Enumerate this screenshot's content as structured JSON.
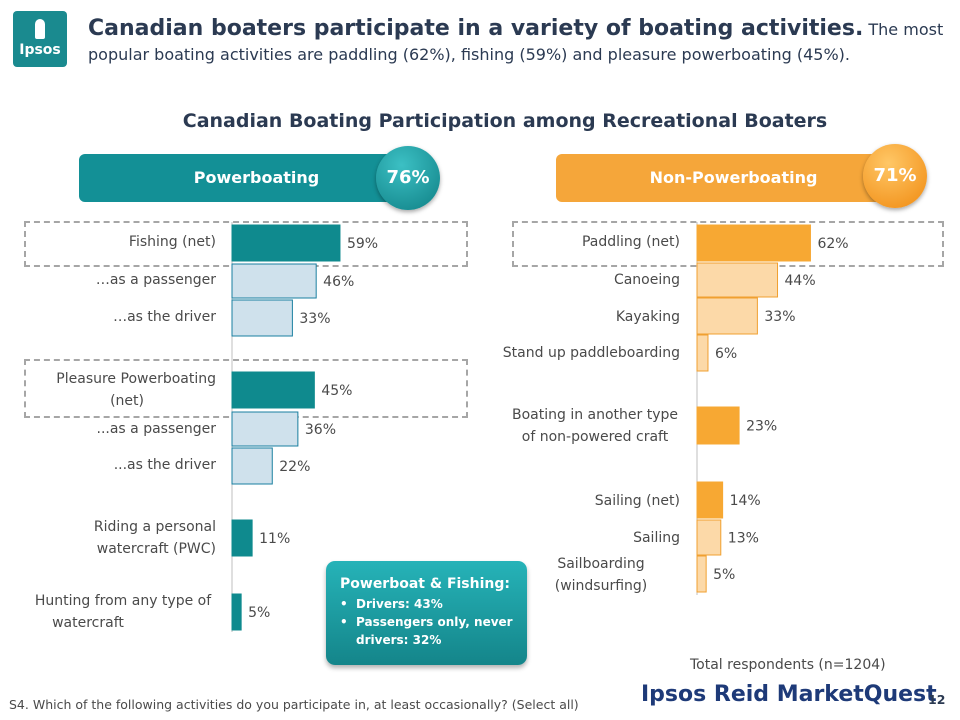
{
  "logo_text": "Ipsos",
  "headline": {
    "bold": "Canadian boaters participate in a variety of boating activities.",
    "rest": " The most popular boating activities are paddling (62%), fishing (59%) and pleasure powerboating (45%)."
  },
  "chart_data": [
    {
      "type": "bar",
      "orientation": "horizontal",
      "title": "Canadian Boating Participation among Recreational Boaters",
      "group_label": "Powerboating",
      "group_total": "76%",
      "categories": [
        "Fishing (net)",
        "…as a passenger",
        "…as the driver",
        "Pleasure Powerboating (net)",
        "...as a passenger",
        "...as the driver",
        "Riding a personal watercraft (PWC)",
        "Hunting from any type of watercraft"
      ],
      "values": [
        59,
        46,
        33,
        45,
        36,
        22,
        11,
        5
      ],
      "value_labels": [
        "59%",
        "46%",
        "33%",
        "45%",
        "36%",
        "22%",
        "11%",
        "5%"
      ],
      "is_net": [
        true,
        false,
        false,
        true,
        false,
        false,
        true,
        true
      ],
      "colors": {
        "main": "#0f8a8e",
        "sub": "#cfe1ec",
        "sub_border": "#1a7fa0",
        "pill": "#139096"
      }
    },
    {
      "type": "bar",
      "orientation": "horizontal",
      "group_label": "Non-Powerboating",
      "group_total": "71%",
      "categories": [
        "Paddling (net)",
        "Canoeing",
        "Kayaking",
        "Stand up paddleboarding",
        "Boating in another type of non-powered craft",
        "Sailing (net)",
        "Sailing",
        "Sailboarding (windsurfing)"
      ],
      "values": [
        62,
        44,
        33,
        6,
        23,
        14,
        13,
        5
      ],
      "value_labels": [
        "62%",
        "44%",
        "33%",
        "6%",
        "23%",
        "14%",
        "13%",
        "5%"
      ],
      "is_net": [
        true,
        false,
        false,
        false,
        true,
        true,
        false,
        false
      ],
      "colors": {
        "main": "#f7a833",
        "sub": "#fcd9a8",
        "sub_border": "#f0a030",
        "pill": "#f5a63a"
      }
    }
  ],
  "labels": {
    "fishing_net": "Fishing (net)",
    "fishing_passenger": "…as a passenger",
    "fishing_driver": "…as the driver",
    "pleasure_line1": "Pleasure Powerboating",
    "pleasure_line2": "(net)",
    "pleasure_passenger": "...as a passenger",
    "pleasure_driver": "...as the driver",
    "pwc_line1": "Riding a personal",
    "pwc_line2": "watercraft (PWC)",
    "hunting_line1": "Hunting from any type of",
    "hunting_line2": "watercraft",
    "paddling_net": "Paddling (net)",
    "canoeing": "Canoeing",
    "kayaking": "Kayaking",
    "sup": "Stand up paddleboarding",
    "other_line1": "Boating in another type",
    "other_line2": "of non-powered craft",
    "sailing_net": "Sailing (net)",
    "sailing": "Sailing",
    "sailboarding_line1": "Sailboarding",
    "sailboarding_line2": "(windsurfing)"
  },
  "callout": {
    "title": "Powerboat & Fishing:",
    "items": [
      "Drivers: 43%",
      "Passengers only, never drivers: 32%"
    ]
  },
  "total_respondents": "Total respondents (n=1204)",
  "footnote": "S4. Which of the following activities do you participate in, at least occasionally? (Select all)",
  "brand": "Ipsos Reid MarketQuest",
  "page_number": "12"
}
